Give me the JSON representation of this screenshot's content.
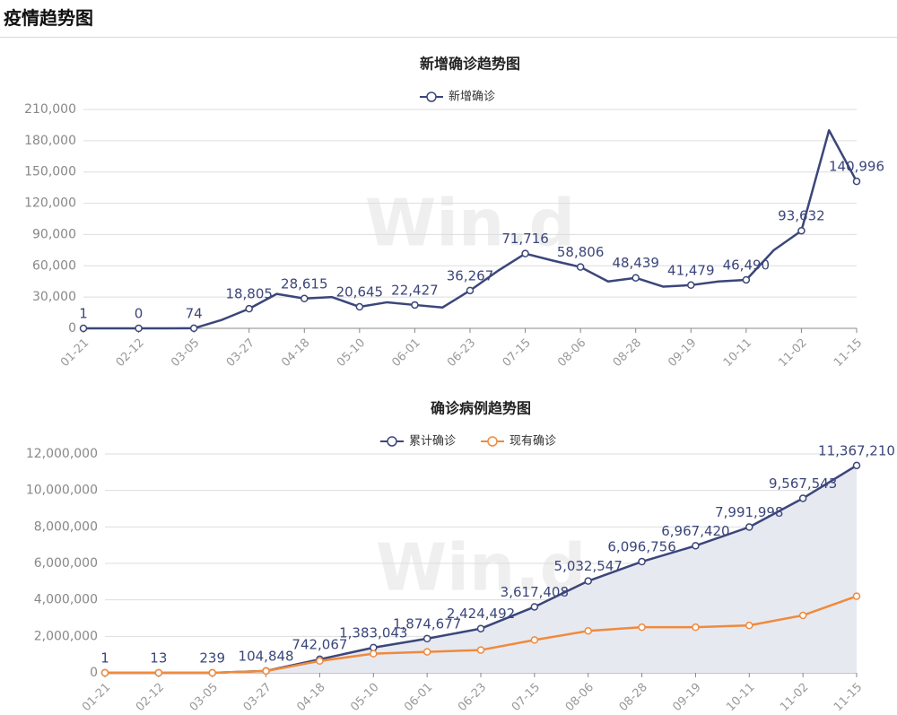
{
  "page_title": "疫情趋势图",
  "chart_data": [
    {
      "type": "line",
      "title": "新增确诊趋势图",
      "watermark": "Win.d",
      "categories": [
        "01-21",
        null,
        "02-12",
        null,
        "03-05",
        null,
        "03-27",
        null,
        "04-18",
        null,
        "05-10",
        null,
        "06-01",
        null,
        "06-23",
        null,
        "07-15",
        null,
        "08-06",
        null,
        "08-28",
        null,
        "09-19",
        null,
        "10-11",
        null,
        "11-02",
        null,
        "11-15"
      ],
      "series": [
        {
          "name": "新增确诊",
          "color": "#3b467a",
          "values": [
            1,
            0,
            0,
            0,
            74,
            8000,
            18805,
            33000,
            28615,
            30000,
            20645,
            25000,
            22427,
            20000,
            36267,
            55000,
            71716,
            65000,
            58806,
            45000,
            48439,
            40000,
            41479,
            45000,
            46490,
            75000,
            93632,
            190000,
            140996
          ],
          "value_labels": [
            "1",
            null,
            "0",
            null,
            "74",
            null,
            "18,805",
            null,
            "28,615",
            null,
            "20,645",
            null,
            "22,427",
            null,
            "36,267",
            null,
            "71,716",
            null,
            "58,806",
            null,
            "48,439",
            null,
            "41,479",
            null,
            "46,490",
            null,
            "93,632",
            null,
            "140,996"
          ]
        }
      ],
      "ylim": [
        0,
        210000
      ],
      "yticks": [
        0,
        {
          "value": 30000,
          "label": "30,000"
        },
        {
          "value": 60000,
          "label": "60,000"
        },
        {
          "value": 90000,
          "label": "90,000"
        },
        {
          "value": 120000,
          "label": "120,000"
        },
        {
          "value": 150000,
          "label": "150,000"
        },
        {
          "value": 180000,
          "label": "180,000"
        },
        {
          "value": 210000,
          "label": "210,000"
        }
      ],
      "grid": true
    },
    {
      "type": "line",
      "title": "确诊病例趋势图",
      "watermark": "Win.d",
      "categories": [
        "01-21",
        "02-12",
        "03-05",
        "03-27",
        "04-18",
        "05-10",
        "06-01",
        "06-23",
        "07-15",
        "08-06",
        "08-28",
        "09-19",
        "10-11",
        "11-02",
        "11-15"
      ],
      "series": [
        {
          "name": "累计确诊",
          "color": "#3b467a",
          "area": true,
          "area_color": "#e7e9f1",
          "values": [
            1,
            13,
            239,
            104848,
            742067,
            1383043,
            1874677,
            2424492,
            3617408,
            5032547,
            6096756,
            6967420,
            7991998,
            9567543,
            11367210
          ],
          "value_labels": [
            "1",
            "13",
            "239",
            "104,848",
            "742,067",
            "1,383,043",
            "1,874,677",
            "2,424,492",
            "3,617,408",
            "5,032,547",
            "6,096,756",
            "6,967,420",
            "7,991,998",
            "9,567,543",
            "11,367,210"
          ]
        },
        {
          "name": "现有确诊",
          "color": "#f08a3c",
          "values": [
            1,
            13,
            200,
            100000,
            650000,
            1050000,
            1150000,
            1250000,
            1800000,
            2300000,
            2500000,
            2500000,
            2600000,
            3150000,
            4200000
          ]
        }
      ],
      "ylim": [
        0,
        12000000
      ],
      "yticks": [
        0,
        {
          "value": 2000000,
          "label": "2,000,000"
        },
        {
          "value": 4000000,
          "label": "4,000,000"
        },
        {
          "value": 6000000,
          "label": "6,000,000"
        },
        {
          "value": 8000000,
          "label": "8,000,000"
        },
        {
          "value": 10000000,
          "label": "10,000,000"
        },
        {
          "value": 12000000,
          "label": "12,000,000"
        }
      ],
      "grid": true
    }
  ]
}
